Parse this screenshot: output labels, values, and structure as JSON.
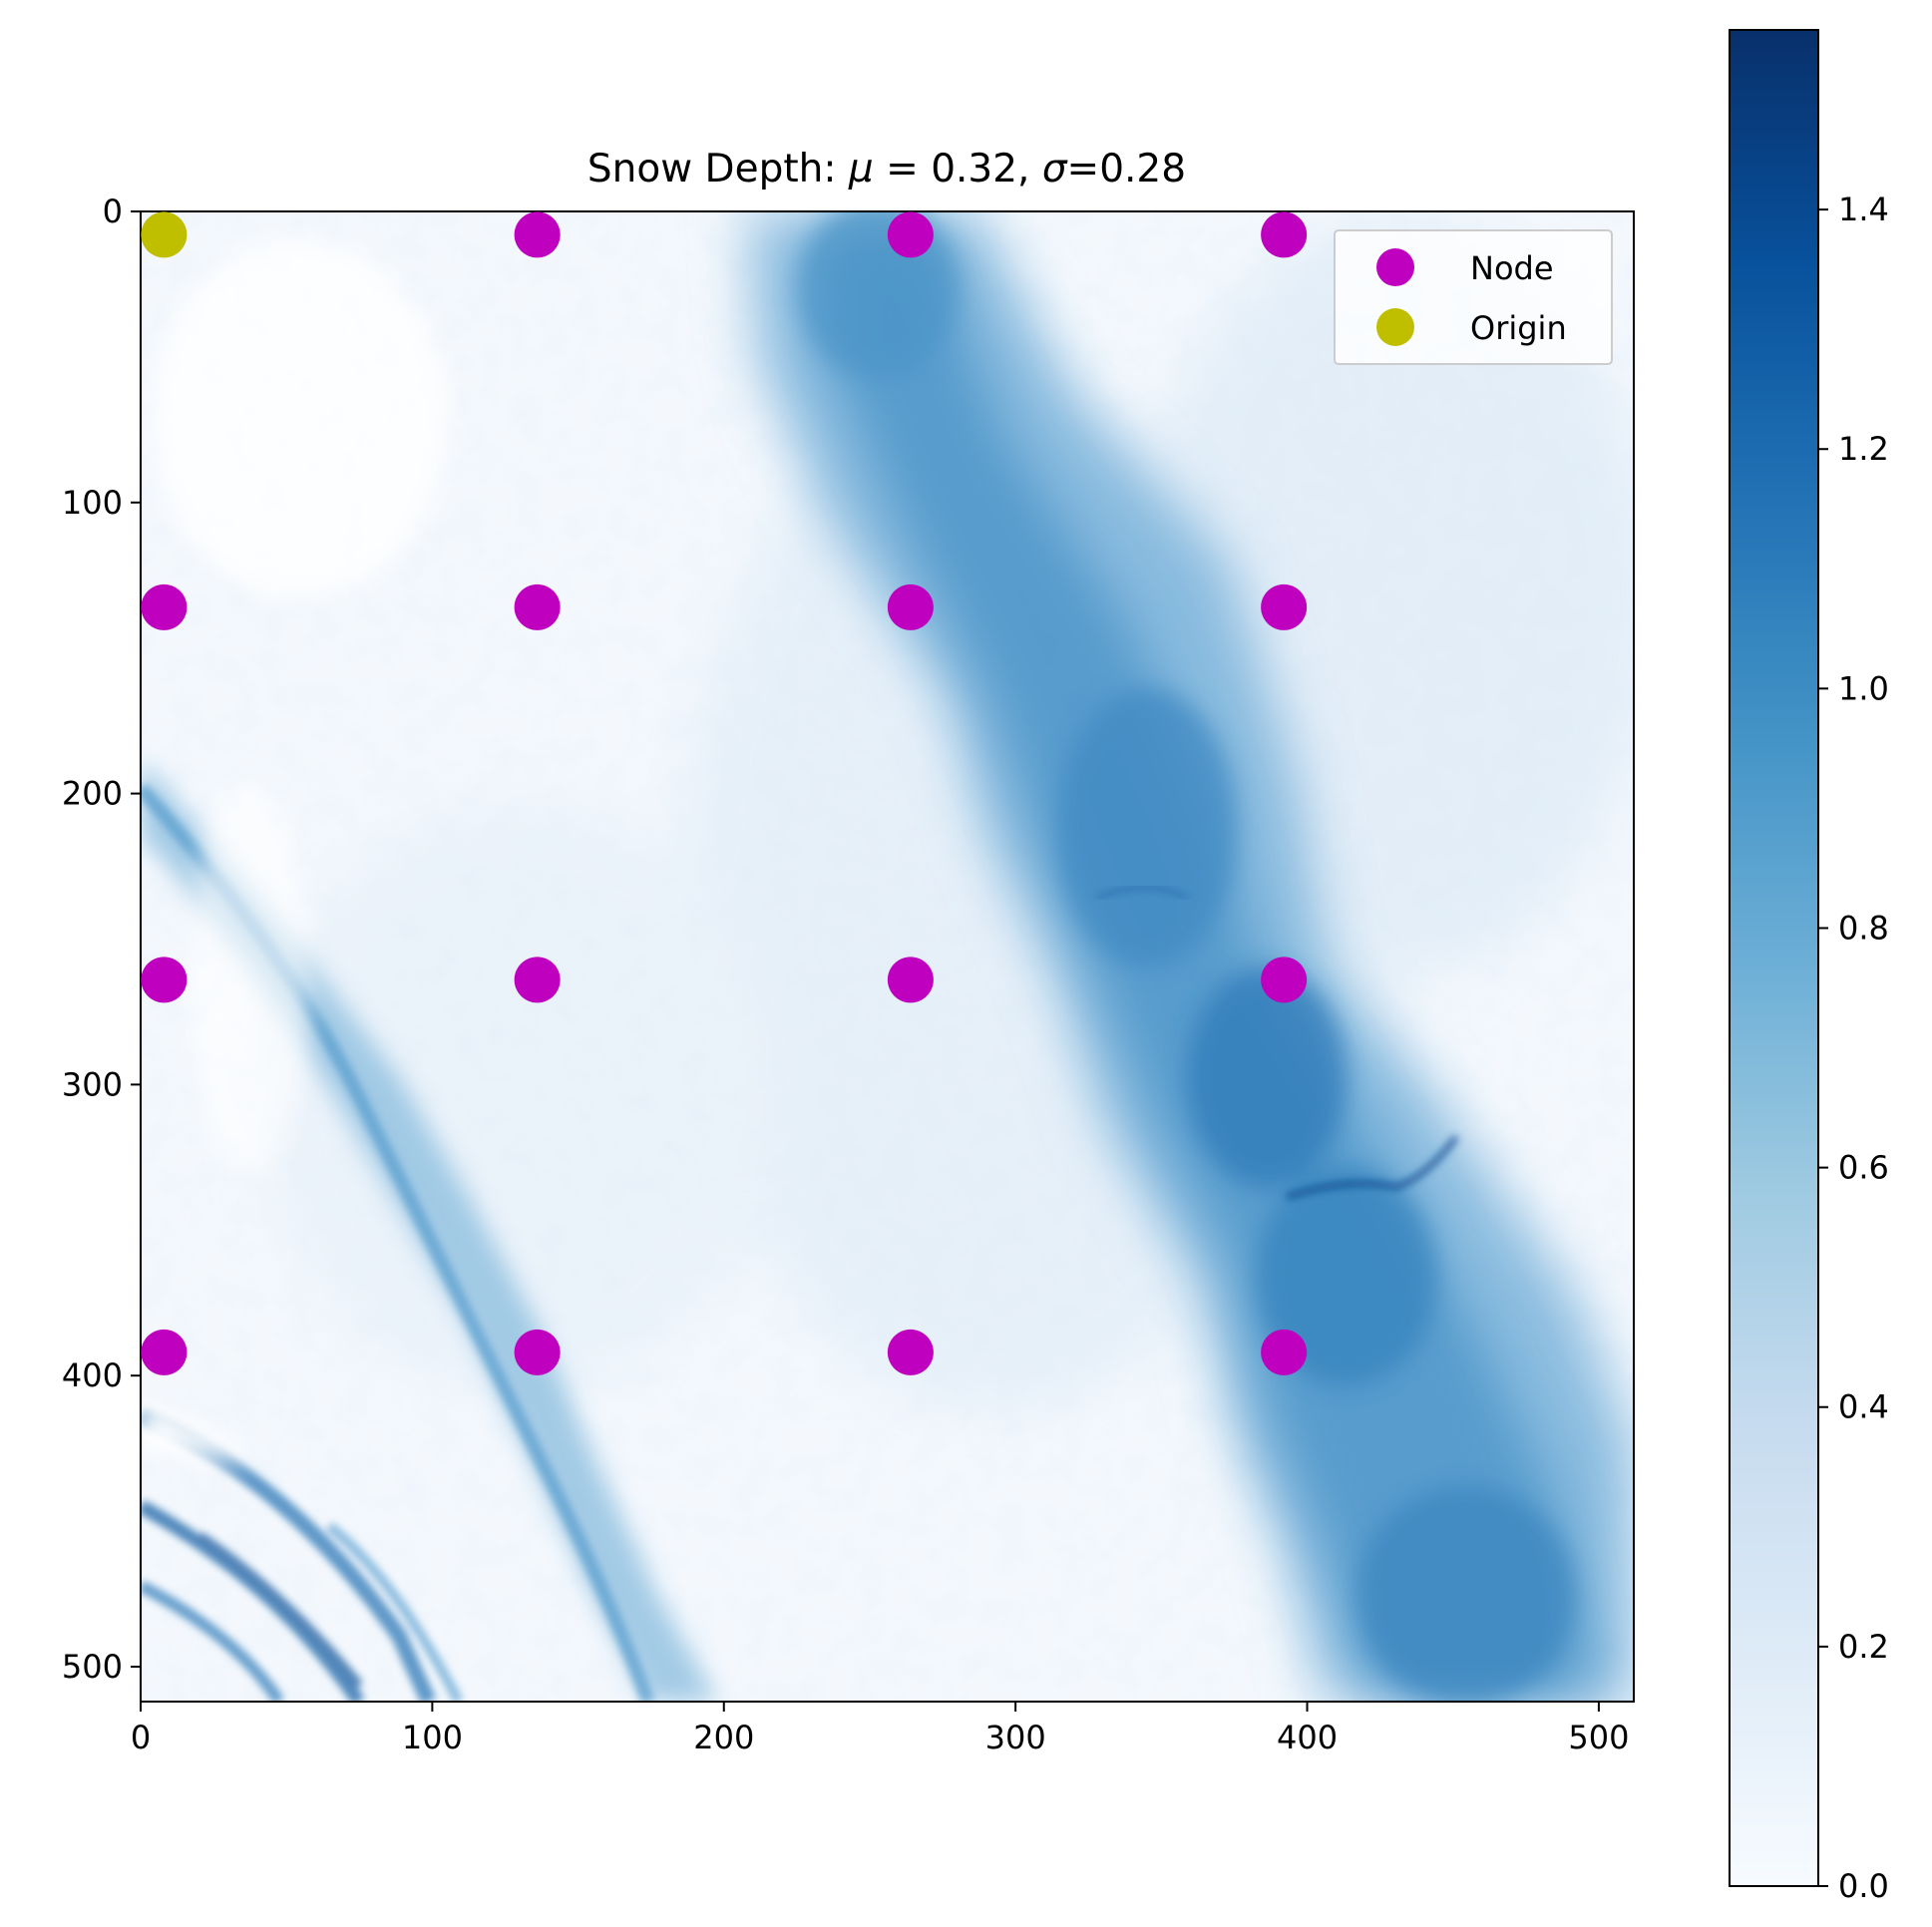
{
  "chart_data": {
    "type": "heatmap",
    "title": {
      "prefix": "Snow Depth: ",
      "mu_symbol": "μ",
      "mu_eq": " = 0.32, ",
      "sigma_symbol": "σ",
      "sigma_eq": "=0.28"
    },
    "xlabel": "",
    "ylabel": "",
    "xlim": [
      0,
      512
    ],
    "ylim": [
      512,
      0
    ],
    "x_ticks": [
      0,
      100,
      200,
      300,
      400,
      500
    ],
    "y_ticks": [
      0,
      100,
      200,
      300,
      400,
      500
    ],
    "colormap": "Blues",
    "colorbar": {
      "min": 0.0,
      "max": 1.55,
      "ticks": [
        "0.0",
        "0.2",
        "0.4",
        "0.6",
        "0.8",
        "1.0",
        "1.2",
        "1.4"
      ],
      "tick_values": [
        0.0,
        0.2,
        0.4,
        0.6,
        0.8,
        1.0,
        1.2,
        1.4
      ]
    },
    "series": [
      {
        "name": "Node",
        "marker": "circle",
        "color": "#bf00bf",
        "points": [
          [
            136,
            8
          ],
          [
            264,
            8
          ],
          [
            392,
            8
          ],
          [
            8,
            136
          ],
          [
            136,
            136
          ],
          [
            264,
            136
          ],
          [
            392,
            136
          ],
          [
            8,
            264
          ],
          [
            136,
            264
          ],
          [
            264,
            264
          ],
          [
            392,
            264
          ],
          [
            8,
            392
          ],
          [
            136,
            392
          ],
          [
            264,
            392
          ],
          [
            392,
            392
          ]
        ]
      },
      {
        "name": "Origin",
        "marker": "circle",
        "color": "#bfbf00",
        "points": [
          [
            8,
            8
          ]
        ]
      }
    ],
    "legend_position": "top-right",
    "grid": false
  }
}
